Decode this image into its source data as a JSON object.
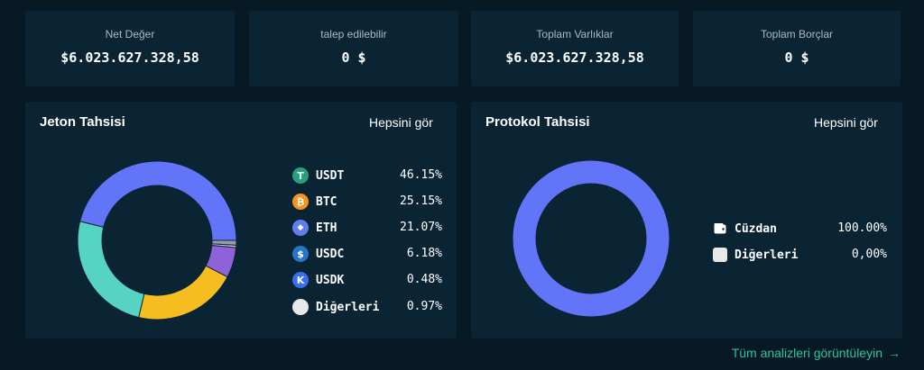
{
  "stats": [
    {
      "label": "Net Değer",
      "value": "$6.023.627.328,58"
    },
    {
      "label": "talep edilebilir",
      "value": "0 $"
    },
    {
      "label": "Toplam Varlıklar",
      "value": "$6.023.627.328,58"
    },
    {
      "label": "Toplam Borçlar",
      "value": "0 $"
    }
  ],
  "token_panel": {
    "title": "Jeton Tahsisi",
    "see_all": "Hepsini gör",
    "items": [
      {
        "name": "USDT",
        "pct": "46.15%",
        "icon": "usdt-icon",
        "color": "#26a17b",
        "glyph": "T"
      },
      {
        "name": "BTC",
        "pct": "25.15%",
        "icon": "btc-icon",
        "color": "#f7931a",
        "glyph": "₿"
      },
      {
        "name": "ETH",
        "pct": "21.07%",
        "icon": "eth-icon",
        "color": "#627eea",
        "glyph": "◆"
      },
      {
        "name": "USDC",
        "pct": "6.18%",
        "icon": "usdc-icon",
        "color": "#2775ca",
        "glyph": "$"
      },
      {
        "name": "USDK",
        "pct": "0.48%",
        "icon": "usdk-icon",
        "color": "#3a6df0",
        "glyph": "K"
      },
      {
        "name": "Diğerleri",
        "pct": "0.97%",
        "icon": "others-icon",
        "color": "#e8e8e8",
        "glyph": ""
      }
    ]
  },
  "protocol_panel": {
    "title": "Protokol Tahsisi",
    "see_all": "Hepsini gör",
    "items": [
      {
        "name": "Cüzdan",
        "pct": "100.00%",
        "icon": "wallet-icon"
      },
      {
        "name": "Diğerleri",
        "pct": "0,00%",
        "icon": "others-square-icon"
      }
    ]
  },
  "chart_data": [
    {
      "type": "pie",
      "categories": [
        "USDT",
        "BTC",
        "ETH",
        "USDC",
        "USDK",
        "Diğerleri"
      ],
      "values": [
        46.15,
        25.15,
        21.07,
        6.18,
        0.48,
        0.97
      ],
      "colors": [
        "#6274f8",
        "#56d3c3",
        "#f5bd20",
        "#8e62d9",
        "#cfcfe0",
        "#9a9aa8"
      ],
      "title": "Jeton Tahsisi",
      "legend": "right"
    },
    {
      "type": "pie",
      "categories": [
        "Cüzdan",
        "Diğerleri"
      ],
      "values": [
        100.0,
        0.0
      ],
      "colors": [
        "#6274f8",
        "#e8e8e8"
      ],
      "title": "Protokol Tahsisi",
      "legend": "right"
    }
  ],
  "footer": {
    "link": "Tüm analizleri görüntüleyin",
    "arrow": "→"
  }
}
